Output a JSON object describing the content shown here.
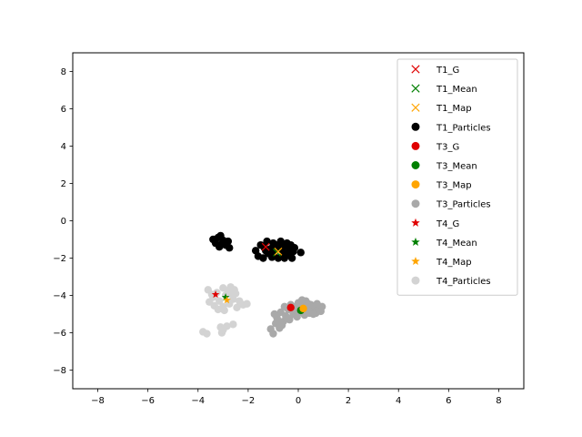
{
  "chart_data": {
    "type": "scatter",
    "title": "",
    "xlabel": "",
    "ylabel": "",
    "xlim": [
      -9,
      9
    ],
    "ylim": [
      -9,
      9
    ],
    "xticks": [
      -8,
      -6,
      -4,
      -2,
      0,
      2,
      4,
      6,
      8
    ],
    "yticks": [
      -8,
      -6,
      -4,
      -2,
      0,
      2,
      4,
      6,
      8
    ],
    "grid": false,
    "legend_position": "top-right",
    "series": [
      {
        "name": "T1_G",
        "marker": "x",
        "color": "#e00000",
        "points": [
          [
            -1.3,
            -1.4
          ]
        ]
      },
      {
        "name": "T1_Mean",
        "marker": "x",
        "color": "#008000",
        "points": [
          [
            -0.85,
            -1.7
          ]
        ]
      },
      {
        "name": "T1_Map",
        "marker": "x",
        "color": "#ffa500",
        "points": [
          [
            -0.8,
            -1.65
          ]
        ]
      },
      {
        "name": "T1_Particles",
        "marker": "circle",
        "color": "#000000",
        "points": [
          [
            -3.4,
            -1.0
          ],
          [
            -3.2,
            -0.9
          ],
          [
            -3.1,
            -0.8
          ],
          [
            -3.3,
            -1.2
          ],
          [
            -3.0,
            -1.05
          ],
          [
            -2.9,
            -1.3
          ],
          [
            -3.15,
            -1.4
          ],
          [
            -2.8,
            -1.1
          ],
          [
            -3.05,
            -1.25
          ],
          [
            -2.75,
            -1.45
          ],
          [
            -1.7,
            -1.6
          ],
          [
            -1.6,
            -1.9
          ],
          [
            -1.5,
            -1.3
          ],
          [
            -1.4,
            -2.0
          ],
          [
            -1.3,
            -1.6
          ],
          [
            -1.25,
            -1.1
          ],
          [
            -1.1,
            -1.5
          ],
          [
            -1.0,
            -1.2
          ],
          [
            -1.0,
            -1.8
          ],
          [
            -0.9,
            -1.3
          ],
          [
            -0.8,
            -2.0
          ],
          [
            -0.75,
            -1.5
          ],
          [
            -0.7,
            -1.1
          ],
          [
            -0.6,
            -1.7
          ],
          [
            -0.55,
            -2.0
          ],
          [
            -0.5,
            -1.35
          ],
          [
            -0.45,
            -1.2
          ],
          [
            -0.4,
            -1.8
          ],
          [
            -0.35,
            -1.55
          ],
          [
            -0.3,
            -1.3
          ],
          [
            -0.25,
            -2.0
          ],
          [
            -0.2,
            -1.65
          ],
          [
            -0.15,
            -1.45
          ],
          [
            -1.2,
            -1.75
          ],
          [
            -1.05,
            -1.95
          ],
          [
            -0.95,
            -1.55
          ],
          [
            -0.65,
            -1.35
          ],
          [
            0.1,
            -1.7
          ],
          [
            -0.6,
            -1.9
          ],
          [
            -1.35,
            -1.45
          ]
        ]
      },
      {
        "name": "T3_G",
        "marker": "circle",
        "color": "#e00000",
        "points": [
          [
            -0.3,
            -4.65
          ]
        ]
      },
      {
        "name": "T3_Mean",
        "marker": "circle",
        "color": "#008000",
        "points": [
          [
            0.1,
            -4.8
          ]
        ]
      },
      {
        "name": "T3_Map",
        "marker": "circle",
        "color": "#ffa500",
        "points": [
          [
            0.2,
            -4.7
          ]
        ]
      },
      {
        "name": "T3_Particles",
        "marker": "circle",
        "color": "#a9a9a9",
        "points": [
          [
            -1.1,
            -5.8
          ],
          [
            -1.0,
            -6.05
          ],
          [
            -0.9,
            -5.5
          ],
          [
            -0.85,
            -5.2
          ],
          [
            -0.75,
            -5.75
          ],
          [
            -0.7,
            -4.9
          ],
          [
            -0.6,
            -5.4
          ],
          [
            -0.55,
            -4.6
          ],
          [
            -0.5,
            -5.1
          ],
          [
            -0.4,
            -4.75
          ],
          [
            -0.35,
            -5.3
          ],
          [
            -0.3,
            -4.5
          ],
          [
            -0.2,
            -5.0
          ],
          [
            -0.1,
            -4.6
          ],
          [
            -0.05,
            -5.15
          ],
          [
            0.0,
            -4.4
          ],
          [
            0.1,
            -4.9
          ],
          [
            0.2,
            -4.55
          ],
          [
            0.25,
            -5.05
          ],
          [
            0.3,
            -4.3
          ],
          [
            0.35,
            -4.7
          ],
          [
            0.45,
            -4.95
          ],
          [
            0.5,
            -4.5
          ],
          [
            0.55,
            -4.8
          ],
          [
            0.65,
            -4.6
          ],
          [
            0.7,
            -4.95
          ],
          [
            0.8,
            -4.7
          ],
          [
            0.9,
            -4.85
          ],
          [
            0.95,
            -4.6
          ],
          [
            -0.65,
            -5.6
          ],
          [
            -0.8,
            -5.35
          ],
          [
            -0.45,
            -5.2
          ],
          [
            -0.15,
            -4.85
          ],
          [
            0.05,
            -4.75
          ],
          [
            0.4,
            -4.45
          ],
          [
            0.6,
            -5.0
          ],
          [
            -0.25,
            -4.8
          ],
          [
            0.15,
            -4.25
          ],
          [
            -0.95,
            -5.0
          ],
          [
            0.75,
            -4.45
          ]
        ]
      },
      {
        "name": "T4_G",
        "marker": "star",
        "color": "#e00000",
        "points": [
          [
            -3.3,
            -3.95
          ]
        ]
      },
      {
        "name": "T4_Mean",
        "marker": "star",
        "color": "#008000",
        "points": [
          [
            -2.9,
            -4.1
          ]
        ]
      },
      {
        "name": "T4_Map",
        "marker": "star",
        "color": "#ffa500",
        "points": [
          [
            -2.85,
            -4.25
          ]
        ]
      },
      {
        "name": "T4_Particles",
        "marker": "circle",
        "color": "#d3d3d3",
        "points": [
          [
            -3.6,
            -3.7
          ],
          [
            -3.55,
            -4.35
          ],
          [
            -3.4,
            -4.1
          ],
          [
            -3.35,
            -4.55
          ],
          [
            -3.25,
            -3.85
          ],
          [
            -3.15,
            -4.3
          ],
          [
            -3.0,
            -3.6
          ],
          [
            -3.0,
            -4.6
          ],
          [
            -2.9,
            -4.0
          ],
          [
            -2.8,
            -3.75
          ],
          [
            -2.75,
            -4.45
          ],
          [
            -2.7,
            -3.55
          ],
          [
            -2.6,
            -4.2
          ],
          [
            -2.5,
            -3.9
          ],
          [
            -2.45,
            -4.65
          ],
          [
            -2.35,
            -4.3
          ],
          [
            -2.2,
            -4.5
          ],
          [
            -2.05,
            -4.45
          ],
          [
            -2.65,
            -3.95
          ],
          [
            -3.45,
            -3.95
          ],
          [
            -3.1,
            -5.7
          ],
          [
            -3.05,
            -6.0
          ],
          [
            -3.0,
            -5.85
          ],
          [
            -2.85,
            -5.65
          ],
          [
            -2.6,
            -5.55
          ],
          [
            -3.8,
            -5.95
          ],
          [
            -3.65,
            -6.05
          ],
          [
            -3.2,
            -4.75
          ],
          [
            -2.95,
            -4.8
          ],
          [
            -2.55,
            -3.7
          ]
        ]
      }
    ]
  }
}
